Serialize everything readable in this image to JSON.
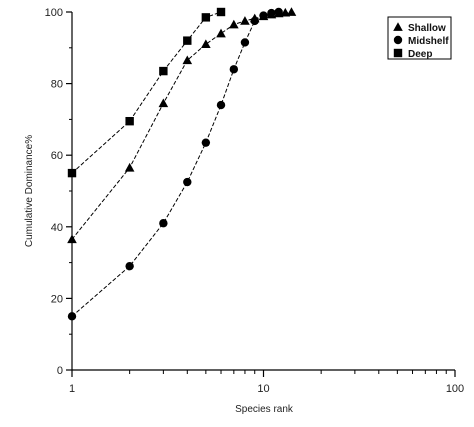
{
  "chart_data": {
    "type": "line",
    "title": "",
    "xlabel": "Species rank",
    "ylabel": "Cumulative Dominance%",
    "xscale": "log",
    "xlim": [
      1,
      100
    ],
    "ylim": [
      0,
      100
    ],
    "xticks": [
      1,
      10,
      100
    ],
    "xtick_labels": [
      "1",
      "10",
      "100"
    ],
    "yticks": [
      0,
      20,
      40,
      60,
      80,
      100
    ],
    "ytick_labels": [
      "0",
      "20",
      "40",
      "60",
      "80",
      "100"
    ],
    "grid": false,
    "legend_position": "top-right",
    "series": [
      {
        "name": "Shallow",
        "marker": "triangle",
        "line_style": "dashed",
        "color": "#000000",
        "x": [
          1,
          2,
          3,
          4,
          5,
          6,
          7,
          8,
          9,
          10,
          11,
          12,
          13,
          14
        ],
        "y": [
          36.5,
          56.5,
          74.5,
          86.5,
          91,
          94,
          96.5,
          97.5,
          98.2,
          98.8,
          99.3,
          99.6,
          99.8,
          100
        ]
      },
      {
        "name": "Midshelf",
        "marker": "circle",
        "line_style": "dashed",
        "color": "#000000",
        "x": [
          1,
          2,
          3,
          4,
          5,
          6,
          7,
          8,
          9,
          10,
          11,
          12
        ],
        "y": [
          15,
          29,
          41,
          52.5,
          63.5,
          74,
          84,
          91.5,
          97.5,
          99,
          99.7,
          100
        ]
      },
      {
        "name": "Deep",
        "marker": "square",
        "line_style": "dashed",
        "color": "#000000",
        "x": [
          1,
          2,
          3,
          4,
          5,
          6
        ],
        "y": [
          55,
          69.5,
          83.5,
          92,
          98.5,
          100
        ]
      }
    ]
  }
}
